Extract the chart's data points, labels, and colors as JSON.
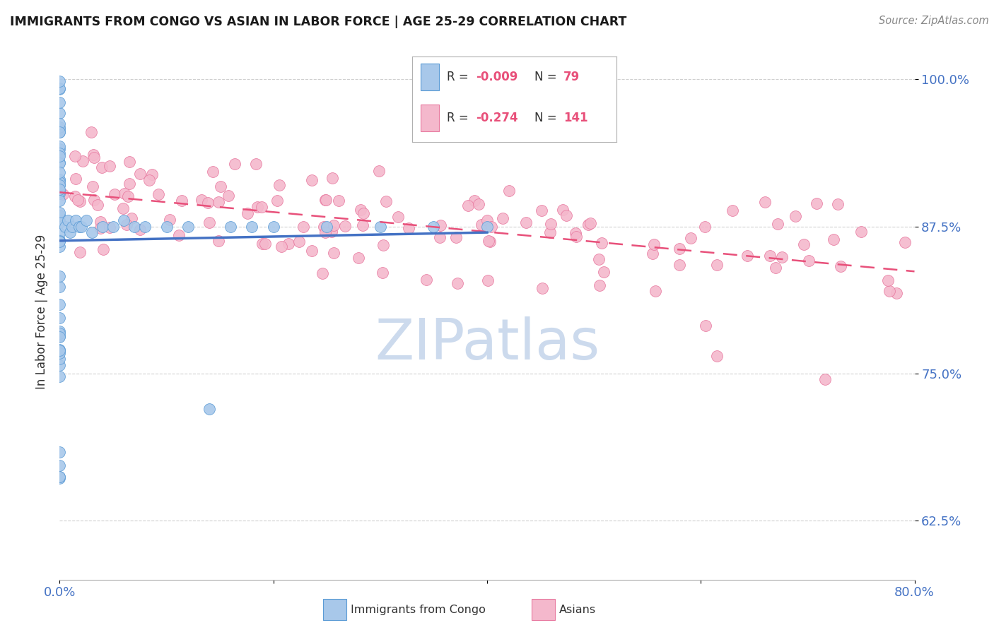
{
  "title": "IMMIGRANTS FROM CONGO VS ASIAN IN LABOR FORCE | AGE 25-29 CORRELATION CHART",
  "source": "Source: ZipAtlas.com",
  "ylabel": "In Labor Force | Age 25-29",
  "xlim": [
    0.0,
    0.8
  ],
  "ylim": [
    0.575,
    1.03
  ],
  "yticks": [
    0.625,
    0.75,
    0.875,
    1.0
  ],
  "ytick_labels": [
    "62.5%",
    "75.0%",
    "87.5%",
    "100.0%"
  ],
  "xticks": [
    0.0,
    0.2,
    0.4,
    0.6,
    0.8
  ],
  "xtick_labels": [
    "0.0%",
    "",
    "",
    "",
    "80.0%"
  ],
  "R_congo": "-0.009",
  "N_congo": "79",
  "R_asian": "-0.274",
  "N_asian": "141",
  "congo_face": "#a8c8ea",
  "congo_edge": "#5b9bd5",
  "asian_face": "#f4b8cc",
  "asian_edge": "#e87aa0",
  "congo_line_color": "#4472c4",
  "asian_line_color": "#e8507a",
  "axis_color": "#4472c4",
  "title_color": "#1a1a1a",
  "source_color": "#888888",
  "grid_color": "#d0d0d0",
  "watermark_color": "#ccdaed",
  "background": "#ffffff"
}
